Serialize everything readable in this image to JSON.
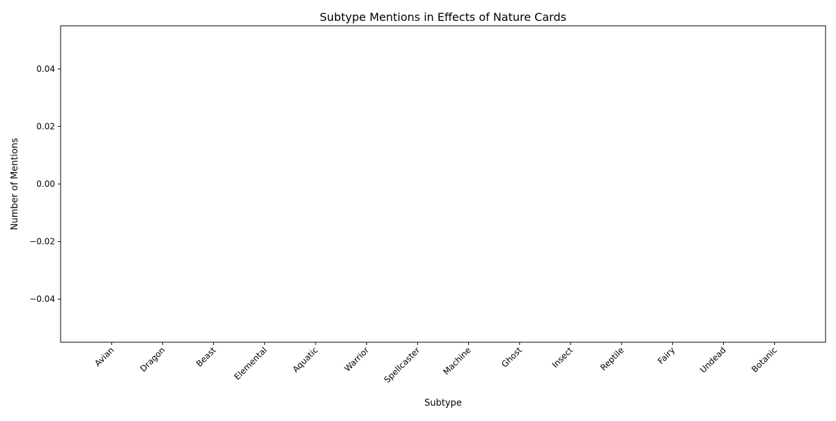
{
  "chart_data": {
    "type": "bar",
    "title": "Subtype Mentions in Effects of Nature Cards",
    "xlabel": "Subtype",
    "ylabel": "Number of Mentions",
    "categories": [
      "Avian",
      "Dragon",
      "Beast",
      "Elemental",
      "Aquatic",
      "Warrior",
      "Spellcaster",
      "Machine",
      "Ghost",
      "Insect",
      "Reptile",
      "Fairy",
      "Undead",
      "Botanic"
    ],
    "values": [
      0,
      0,
      0,
      0,
      0,
      0,
      0,
      0,
      0,
      0,
      0,
      0,
      0,
      0
    ],
    "ylim": [
      -0.055,
      0.055
    ],
    "yticks": [
      0.04,
      0.02,
      0.0,
      -0.02,
      -0.04
    ],
    "ytick_labels": [
      "0.04",
      "0.02",
      "0.00",
      "−0.02",
      "−0.04"
    ],
    "grid": false,
    "bar_color": "#1f77b4"
  }
}
